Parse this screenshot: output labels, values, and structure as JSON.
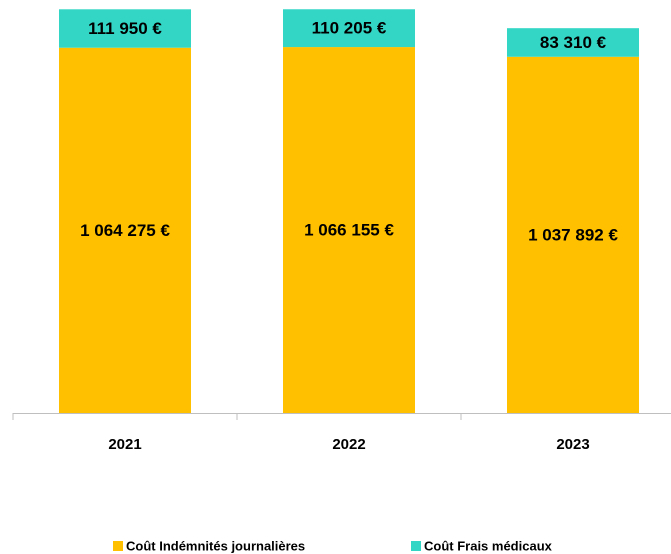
{
  "chart_data": {
    "type": "stacked_bar",
    "categories": [
      "2021",
      "2022",
      "2023"
    ],
    "series": [
      {
        "name": "Coût Indémnités journalières",
        "color": "#FFC000",
        "values": [
          1064275,
          1066155,
          1037892
        ],
        "value_labels": [
          "1 064 275 €",
          "1 066 155 €",
          "1 037 892 €"
        ]
      },
      {
        "name": "Coût Frais médicaux",
        "color": "#33D6C5",
        "values": [
          111950,
          110205,
          83310
        ],
        "value_labels": [
          "111 950 €",
          "110 205 €",
          "83 310 €"
        ]
      }
    ],
    "ylim": [
      0,
      1180000
    ],
    "legend": "bottom"
  }
}
